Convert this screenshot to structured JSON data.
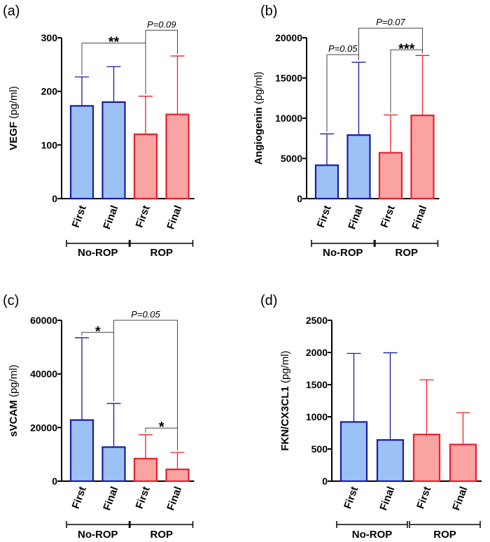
{
  "colors": {
    "no_rop_fill": "#9cc2f5",
    "no_rop_stroke": "#1a1aa8",
    "rop_fill": "#f9a3a3",
    "rop_stroke": "#e8202a",
    "axis": "#000000"
  },
  "groups": [
    "No-ROP",
    "ROP"
  ],
  "chart_data": [
    {
      "panel": "(a)",
      "type": "bar",
      "ylabel": "VEGF",
      "yunit": "(pg/ml)",
      "ylim": [
        0,
        300
      ],
      "yticks": [
        0,
        100,
        200,
        300
      ],
      "categories": [
        "First",
        "Final",
        "First",
        "Final"
      ],
      "groups": [
        "No-ROP",
        "No-ROP",
        "ROP",
        "ROP"
      ],
      "values": [
        173,
        180,
        120,
        157
      ],
      "errors": [
        227,
        246,
        191,
        266
      ],
      "annotations": [
        {
          "text": "**",
          "from": 0,
          "to": 2,
          "y": 290,
          "italic": false
        },
        {
          "text": "P=0.09",
          "from": 2,
          "to": 3,
          "y": 314,
          "italic": true
        }
      ]
    },
    {
      "panel": "(b)",
      "type": "bar",
      "ylabel": "Angiogenin",
      "yunit": "(pg/ml)",
      "ylim": [
        0,
        20000
      ],
      "yticks": [
        0,
        5000,
        10000,
        15000,
        20000
      ],
      "categories": [
        "First",
        "Final",
        "First",
        "Final"
      ],
      "groups": [
        "No-ROP",
        "No-ROP",
        "ROP",
        "ROP"
      ],
      "values": [
        4150,
        7900,
        5700,
        10350
      ],
      "errors": [
        8050,
        16950,
        10400,
        17800
      ],
      "annotations": [
        {
          "text": "P=0.05",
          "from": 0,
          "to": 1,
          "y": 17900,
          "italic": true
        },
        {
          "text": "P=0.07",
          "from": 1,
          "to": 3,
          "y": 21200,
          "italic": true
        },
        {
          "text": "***",
          "from": 2,
          "to": 3,
          "y": 18500,
          "italic": false
        }
      ]
    },
    {
      "panel": "(c)",
      "type": "bar",
      "ylabel": "sVCAM",
      "yunit": "(pg/ml)",
      "ylim": [
        0,
        60000
      ],
      "yticks": [
        0,
        20000,
        40000,
        60000
      ],
      "categories": [
        "First",
        "Final",
        "First",
        "Final"
      ],
      "groups": [
        "No-ROP",
        "No-ROP",
        "ROP",
        "ROP"
      ],
      "values": [
        22800,
        12700,
        8400,
        4400
      ],
      "errors": [
        53500,
        29000,
        17300,
        10700
      ],
      "annotations": [
        {
          "text": "*",
          "from": 0,
          "to": 1,
          "y": 55500,
          "italic": false
        },
        {
          "text": "P=0.05",
          "from": 1,
          "to": 3,
          "y": 60000,
          "italic": true
        },
        {
          "text": "*",
          "from": 2,
          "to": 3,
          "y": 19800,
          "italic": false
        }
      ]
    },
    {
      "panel": "(d)",
      "type": "bar",
      "ylabel": "FKN/CX3CL1",
      "yunit": "(pg/ml)",
      "ylim": [
        0,
        2500
      ],
      "yticks": [
        0,
        500,
        1000,
        1500,
        2000,
        2500
      ],
      "categories": [
        "First",
        "Final",
        "First",
        "Final"
      ],
      "groups": [
        "No-ROP",
        "No-ROP",
        "ROP",
        "ROP"
      ],
      "values": [
        920,
        640,
        725,
        570
      ],
      "errors": [
        1985,
        1995,
        1575,
        1065
      ],
      "annotations": []
    }
  ]
}
